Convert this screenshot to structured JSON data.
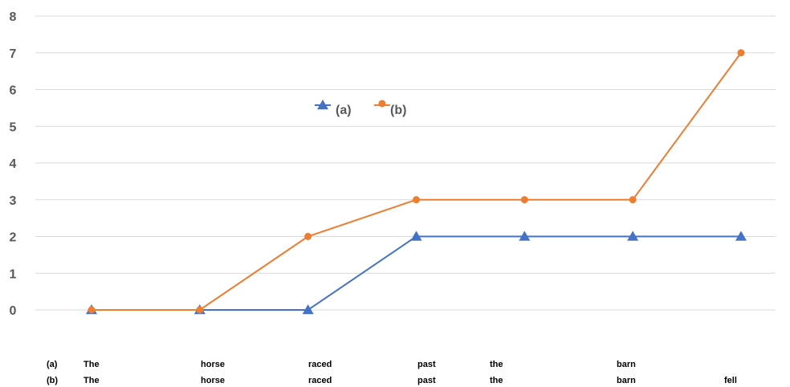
{
  "chart_data": {
    "type": "line",
    "title": "",
    "xlabel": "",
    "ylabel": "",
    "ylim": [
      0,
      8
    ],
    "yticks": [
      0,
      1,
      2,
      3,
      4,
      5,
      6,
      7,
      8
    ],
    "grid": true,
    "legend_placement": "upper-center",
    "x": [
      1,
      2,
      3,
      4,
      5,
      6,
      7
    ],
    "series": [
      {
        "name": "(a)",
        "color": "#4472C4",
        "marker": "triangle",
        "values": [
          0,
          0,
          0,
          2,
          2,
          2,
          2
        ]
      },
      {
        "name": "(b)",
        "color": "#ED7D31",
        "marker": "circle",
        "values": [
          0,
          0,
          2,
          3,
          3,
          3,
          7
        ]
      }
    ],
    "word_rows": [
      {
        "row_label": "(a)",
        "words": [
          "The",
          "horse",
          "raced",
          "past",
          "the",
          "barn",
          ""
        ]
      },
      {
        "row_label": "(b)",
        "words": [
          "The",
          "horse",
          "raced",
          "past",
          "the",
          "barn",
          "fell"
        ]
      }
    ]
  }
}
